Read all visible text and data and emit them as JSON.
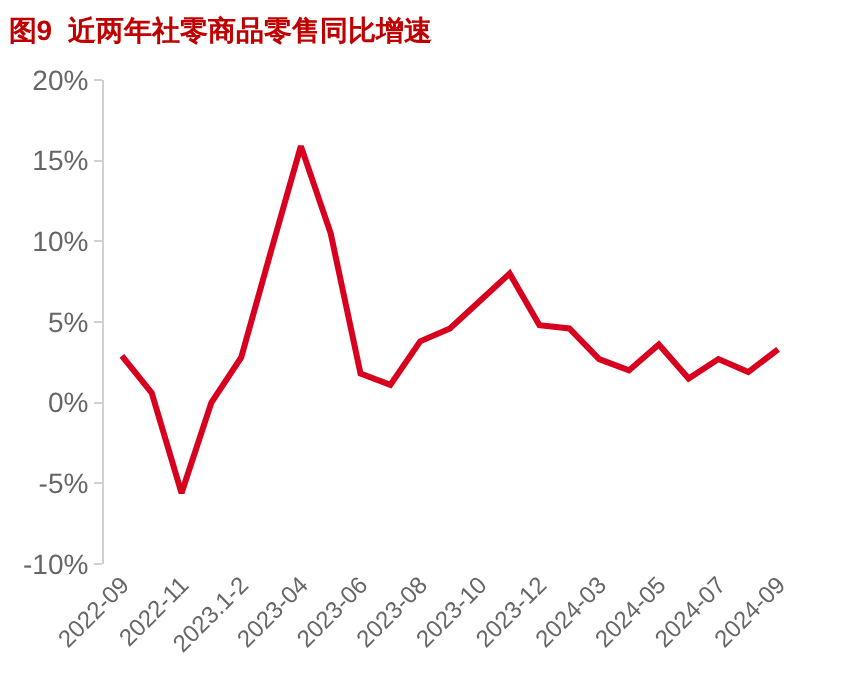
{
  "chart_data": {
    "type": "line",
    "title": "图9  近两年社零商品零售同比增速",
    "categories": [
      "2022-09",
      null,
      "2022-11",
      null,
      "2023.1-2",
      null,
      "2023-04",
      null,
      "2023-06",
      null,
      "2023-08",
      null,
      "2023-10",
      null,
      "2023-12",
      null,
      "2024-03",
      null,
      "2024-05",
      null,
      "2024-07",
      null,
      "2024-09"
    ],
    "series": [
      {
        "color": "#d7001e",
        "values": [
          2.9,
          0.6,
          -5.6,
          0.0,
          2.8,
          9.4,
          15.9,
          10.5,
          1.8,
          1.1,
          3.8,
          4.6,
          6.3,
          8.0,
          4.8,
          4.6,
          2.7,
          2.0,
          3.6,
          1.5,
          2.7,
          1.9,
          3.3
        ]
      }
    ],
    "ylim": [
      -10,
      20
    ],
    "yticks": [
      {
        "value": -10,
        "label": "-10%"
      },
      {
        "value": -5,
        "label": "-5%"
      },
      {
        "value": 0,
        "label": "0%"
      },
      {
        "value": 5,
        "label": "5%"
      },
      {
        "value": 10,
        "label": "10%"
      },
      {
        "value": 15,
        "label": "15%"
      },
      {
        "value": 20,
        "label": "20%"
      }
    ],
    "marker": "none",
    "line_style": "solid"
  }
}
